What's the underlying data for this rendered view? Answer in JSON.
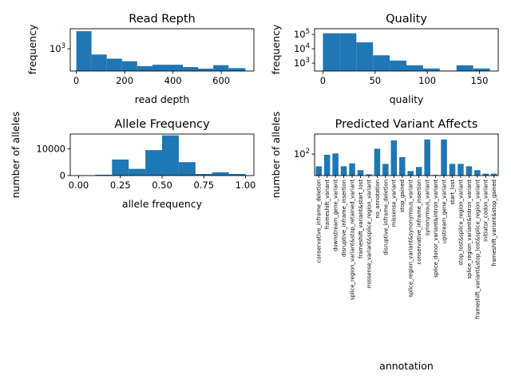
{
  "chart_data": [
    {
      "type": "bar",
      "title": "Read Repth",
      "xlabel": "read depth",
      "ylabel": "frequency",
      "xlim": [
        -25,
        735
      ],
      "ylim": [
        250,
        3500
      ],
      "yscale": "log",
      "xticks": [
        0,
        200,
        400,
        600
      ],
      "yticks": [
        {
          "value": 1000,
          "base": "10",
          "exp": "3"
        }
      ],
      "bin_edges": [
        0,
        63,
        126,
        189,
        252,
        315,
        378,
        441,
        504,
        567,
        630,
        700
      ],
      "values": [
        3000,
        700,
        540,
        460,
        340,
        370,
        370,
        320,
        290,
        360,
        300
      ]
    },
    {
      "type": "bar",
      "title": "Quality",
      "xlabel": "quality",
      "ylabel": "frequency",
      "xlim": [
        -8,
        168
      ],
      "ylim": [
        280,
        250000
      ],
      "yscale": "log",
      "xticks": [
        0,
        50,
        100,
        150
      ],
      "yticks": [
        {
          "value": 1000,
          "base": "10",
          "exp": "3"
        },
        {
          "value": 10000,
          "base": "10",
          "exp": "4"
        },
        {
          "value": 100000,
          "base": "10",
          "exp": "5"
        }
      ],
      "bin_edges": [
        0,
        16,
        32,
        48,
        64,
        80,
        96,
        112,
        128,
        144,
        160
      ],
      "values": [
        120000,
        120000,
        28000,
        3500,
        1500,
        700,
        420,
        300,
        700,
        420
      ]
    },
    {
      "type": "bar",
      "title": "Allele Frequency",
      "xlabel": "allele frequency",
      "ylabel": "number of alleles",
      "xlim": [
        -0.05,
        1.05
      ],
      "ylim": [
        0,
        15500
      ],
      "yscale": "linear",
      "xticks": [
        "0.00",
        "0.25",
        "0.50",
        "0.75",
        "1.00"
      ],
      "yticks": [
        0,
        10000
      ],
      "bin_edges": [
        0.0,
        0.1,
        0.2,
        0.3,
        0.4,
        0.5,
        0.6,
        0.7,
        0.8,
        0.9,
        1.0
      ],
      "values": [
        0,
        300,
        6000,
        2500,
        9500,
        15000,
        5000,
        600,
        1200,
        600
      ]
    },
    {
      "type": "bar",
      "title": "Predicted Variant Affects",
      "xlabel": "annotation",
      "ylabel": "number of alleles",
      "ylim": [
        20,
        450
      ],
      "yscale": "log",
      "yticks": [
        {
          "value": 100,
          "base": "10",
          "exp": "2"
        }
      ],
      "categories": [
        "conservative_inframe_deletion",
        "frameshift_variant",
        "downstream_gene_variant",
        "disruptive_inframe_insertion",
        "splice_region_variant&stop_retained_variant",
        "frameshift_variant&start_lost",
        "missense_variant&splice_region_variant",
        "no_annotation",
        "disruptive_inframe_deletion",
        "missense_variant",
        "stop_gained",
        "splice_region_variant&synonymous_variant",
        "conservative_inframe_insertion",
        "synonymous_variant",
        "splice_donor_variant&intron_variant",
        "upstream_gene_variant",
        "start_lost",
        "stop_lost&splice_region_variant",
        "splice_region_variant&intron_variant",
        "frameshift_variant&stop_lost&splice_region_variant",
        "initiator_codon_variant",
        "frameshift_variant&stop_gained"
      ],
      "values": [
        40,
        95,
        105,
        40,
        50,
        30,
        22,
        150,
        48,
        280,
        80,
        28,
        38,
        300,
        21,
        300,
        48,
        48,
        40,
        30,
        23,
        23
      ]
    }
  ]
}
